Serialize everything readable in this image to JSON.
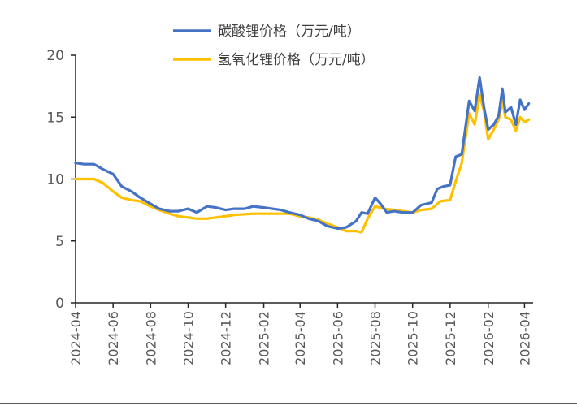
{
  "chart_data": {
    "type": "line",
    "xlabel": "",
    "ylabel": "",
    "ylim": [
      0,
      20
    ],
    "yticks": [
      "0",
      "5",
      "10",
      "15",
      "20"
    ],
    "x_range": [
      "2024-04-01",
      "2026-04-15"
    ],
    "xticks": [
      "2024-04",
      "2024-06",
      "2024-08",
      "2024-10",
      "2024-12",
      "2025-02",
      "2025-04",
      "2025-06",
      "2025-08",
      "2025-10",
      "2025-12",
      "2026-02",
      "2026-04"
    ],
    "grid": false,
    "legend_position": "top-center",
    "series": [
      {
        "name": "碳酸锂价格（万元/吨）",
        "color": "#4472C4",
        "points": [
          [
            "2024-04-01",
            11.3
          ],
          [
            "2024-04-15",
            11.2
          ],
          [
            "2024-05-01",
            11.2
          ],
          [
            "2024-05-15",
            10.8
          ],
          [
            "2024-06-01",
            10.4
          ],
          [
            "2024-06-15",
            9.4
          ],
          [
            "2024-07-01",
            9.0
          ],
          [
            "2024-07-15",
            8.5
          ],
          [
            "2024-08-01",
            8.0
          ],
          [
            "2024-08-15",
            7.6
          ],
          [
            "2024-09-01",
            7.4
          ],
          [
            "2024-09-15",
            7.4
          ],
          [
            "2024-10-01",
            7.6
          ],
          [
            "2024-10-15",
            7.3
          ],
          [
            "2024-11-01",
            7.8
          ],
          [
            "2024-11-15",
            7.7
          ],
          [
            "2024-12-01",
            7.5
          ],
          [
            "2024-12-15",
            7.6
          ],
          [
            "2025-01-01",
            7.6
          ],
          [
            "2025-01-15",
            7.8
          ],
          [
            "2025-02-01",
            7.7
          ],
          [
            "2025-02-15",
            7.6
          ],
          [
            "2025-03-01",
            7.5
          ],
          [
            "2025-03-15",
            7.3
          ],
          [
            "2025-04-01",
            7.1
          ],
          [
            "2025-04-15",
            6.8
          ],
          [
            "2025-05-01",
            6.6
          ],
          [
            "2025-05-15",
            6.2
          ],
          [
            "2025-06-01",
            6.0
          ],
          [
            "2025-06-15",
            6.1
          ],
          [
            "2025-07-01",
            6.6
          ],
          [
            "2025-07-10",
            7.3
          ],
          [
            "2025-07-20",
            7.2
          ],
          [
            "2025-08-01",
            8.5
          ],
          [
            "2025-08-10",
            8.0
          ],
          [
            "2025-08-20",
            7.3
          ],
          [
            "2025-09-01",
            7.4
          ],
          [
            "2025-09-15",
            7.3
          ],
          [
            "2025-10-01",
            7.3
          ],
          [
            "2025-10-15",
            7.9
          ],
          [
            "2025-11-01",
            8.1
          ],
          [
            "2025-11-10",
            9.2
          ],
          [
            "2025-11-20",
            9.4
          ],
          [
            "2025-12-01",
            9.5
          ],
          [
            "2025-12-10",
            11.8
          ],
          [
            "2025-12-20",
            12.0
          ],
          [
            "2026-01-01",
            16.3
          ],
          [
            "2026-01-10",
            15.5
          ],
          [
            "2026-01-18",
            18.2
          ],
          [
            "2026-01-25",
            15.8
          ],
          [
            "2026-02-01",
            14.0
          ],
          [
            "2026-02-10",
            14.4
          ],
          [
            "2026-02-18",
            15.1
          ],
          [
            "2026-02-24",
            17.3
          ],
          [
            "2026-03-01",
            15.4
          ],
          [
            "2026-03-10",
            15.8
          ],
          [
            "2026-03-18",
            14.4
          ],
          [
            "2026-03-25",
            16.4
          ],
          [
            "2026-04-01",
            15.6
          ],
          [
            "2026-04-08",
            16.1
          ]
        ]
      },
      {
        "name": "氢氧化锂价格（万元/吨）",
        "color": "#FFC000",
        "points": [
          [
            "2024-04-01",
            10.0
          ],
          [
            "2024-05-01",
            10.0
          ],
          [
            "2024-05-15",
            9.7
          ],
          [
            "2024-06-01",
            9.0
          ],
          [
            "2024-06-15",
            8.5
          ],
          [
            "2024-07-01",
            8.3
          ],
          [
            "2024-07-15",
            8.2
          ],
          [
            "2024-08-01",
            7.8
          ],
          [
            "2024-08-15",
            7.5
          ],
          [
            "2024-09-01",
            7.2
          ],
          [
            "2024-09-15",
            7.0
          ],
          [
            "2024-10-01",
            6.9
          ],
          [
            "2024-10-15",
            6.8
          ],
          [
            "2024-11-01",
            6.8
          ],
          [
            "2024-11-15",
            6.9
          ],
          [
            "2024-12-01",
            7.0
          ],
          [
            "2024-12-15",
            7.1
          ],
          [
            "2025-01-15",
            7.2
          ],
          [
            "2025-02-15",
            7.2
          ],
          [
            "2025-03-15",
            7.2
          ],
          [
            "2025-04-01",
            7.0
          ],
          [
            "2025-04-15",
            6.9
          ],
          [
            "2025-05-01",
            6.7
          ],
          [
            "2025-05-15",
            6.4
          ],
          [
            "2025-06-01",
            6.1
          ],
          [
            "2025-06-15",
            5.8
          ],
          [
            "2025-07-01",
            5.8
          ],
          [
            "2025-07-10",
            5.7
          ],
          [
            "2025-07-20",
            6.8
          ],
          [
            "2025-08-01",
            7.8
          ],
          [
            "2025-08-15",
            7.6
          ],
          [
            "2025-09-01",
            7.5
          ],
          [
            "2025-10-01",
            7.3
          ],
          [
            "2025-10-15",
            7.5
          ],
          [
            "2025-11-01",
            7.6
          ],
          [
            "2025-11-15",
            8.2
          ],
          [
            "2025-12-01",
            8.3
          ],
          [
            "2025-12-10",
            9.8
          ],
          [
            "2025-12-20",
            11.3
          ],
          [
            "2026-01-01",
            15.3
          ],
          [
            "2026-01-10",
            14.4
          ],
          [
            "2026-01-18",
            16.8
          ],
          [
            "2026-01-25",
            15.5
          ],
          [
            "2026-02-01",
            13.2
          ],
          [
            "2026-02-10",
            14.0
          ],
          [
            "2026-02-18",
            14.8
          ],
          [
            "2026-02-24",
            16.3
          ],
          [
            "2026-03-01",
            15.0
          ],
          [
            "2026-03-10",
            14.8
          ],
          [
            "2026-03-18",
            13.9
          ],
          [
            "2026-03-25",
            15.0
          ],
          [
            "2026-04-01",
            14.6
          ],
          [
            "2026-04-08",
            14.8
          ]
        ]
      }
    ]
  }
}
